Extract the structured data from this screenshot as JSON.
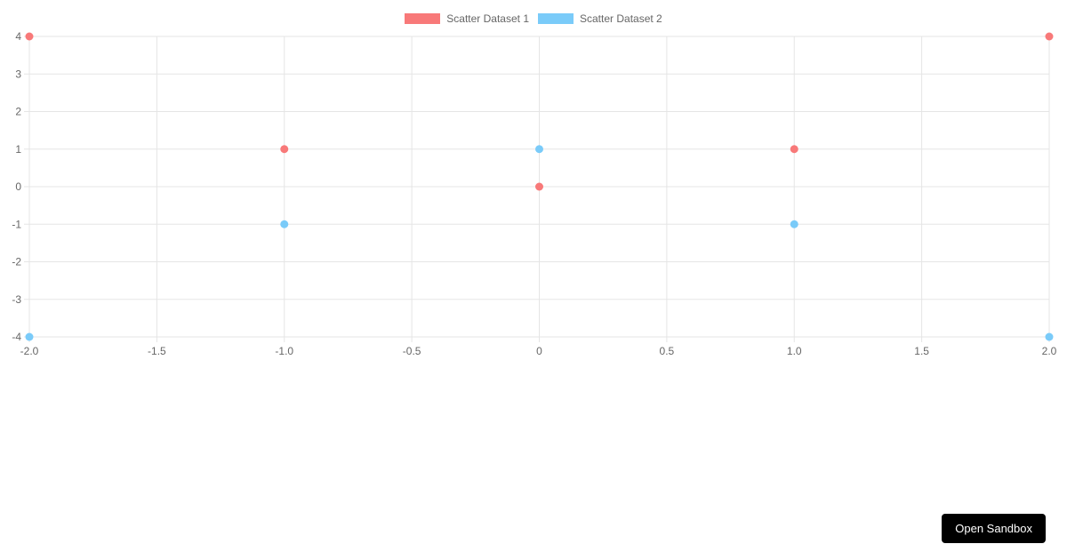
{
  "chart_data": {
    "type": "scatter",
    "title": "",
    "xlabel": "",
    "ylabel": "",
    "xlim": [
      -2,
      2
    ],
    "ylim": [
      -4,
      4
    ],
    "grid": true,
    "legend_position": "top",
    "grid_color": "#e5e5e5",
    "tick_color": "#666666",
    "point_radius": 4.5,
    "x_ticks": [
      "-2.0",
      "-1.5",
      "-1.0",
      "-0.5",
      "0",
      "0.5",
      "1.0",
      "1.5",
      "2.0"
    ],
    "x_tick_values": [
      -2,
      -1.5,
      -1,
      -0.5,
      0,
      0.5,
      1,
      1.5,
      2
    ],
    "y_ticks": [
      "4",
      "3",
      "2",
      "1",
      "0",
      "-1",
      "-2",
      "-3",
      "-4"
    ],
    "y_tick_values": [
      4,
      3,
      2,
      1,
      0,
      -1,
      -2,
      -3,
      -4
    ],
    "series": [
      {
        "name": "Scatter Dataset 1",
        "color": "#f87979",
        "points": [
          {
            "x": -2,
            "y": 4
          },
          {
            "x": -1,
            "y": 1
          },
          {
            "x": 0,
            "y": 0
          },
          {
            "x": 1,
            "y": 1
          },
          {
            "x": 2,
            "y": 4
          }
        ]
      },
      {
        "name": "Scatter Dataset 2",
        "color": "#7acbf9",
        "points": [
          {
            "x": -2,
            "y": -4
          },
          {
            "x": -1,
            "y": -1
          },
          {
            "x": 0,
            "y": 1
          },
          {
            "x": 1,
            "y": -1
          },
          {
            "x": 2,
            "y": -4
          }
        ]
      }
    ]
  },
  "sandbox_button": {
    "label": "Open Sandbox"
  }
}
